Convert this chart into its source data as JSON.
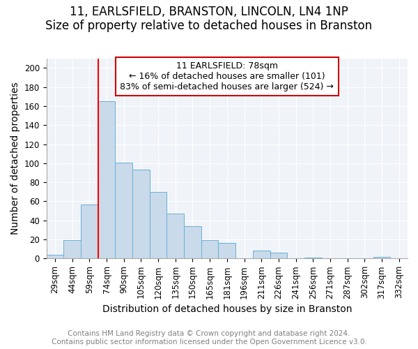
{
  "title": "11, EARLSFIELD, BRANSTON, LINCOLN, LN4 1NP",
  "subtitle": "Size of property relative to detached houses in Branston",
  "xlabel": "Distribution of detached houses by size in Branston",
  "ylabel": "Number of detached properties",
  "bin_labels": [
    "29sqm",
    "44sqm",
    "59sqm",
    "74sqm",
    "90sqm",
    "105sqm",
    "120sqm",
    "135sqm",
    "150sqm",
    "165sqm",
    "181sqm",
    "196sqm",
    "211sqm",
    "226sqm",
    "241sqm",
    "256sqm",
    "271sqm",
    "287sqm",
    "302sqm",
    "317sqm",
    "332sqm"
  ],
  "bar_values": [
    4,
    19,
    57,
    165,
    101,
    93,
    70,
    47,
    34,
    19,
    16,
    0,
    8,
    6,
    0,
    1,
    0,
    0,
    0,
    2,
    0
  ],
  "bar_color": "#c9daea",
  "bar_edge_color": "#6aafd6",
  "red_line_bin_index": 3,
  "annotation_title": "11 EARLSFIELD: 78sqm",
  "annotation_line1": "← 16% of detached houses are smaller (101)",
  "annotation_line2": "83% of semi-detached houses are larger (524) →",
  "annotation_box_edge": "#cc0000",
  "ylim": [
    0,
    210
  ],
  "yticks": [
    0,
    20,
    40,
    60,
    80,
    100,
    120,
    140,
    160,
    180,
    200
  ],
  "footnote1": "Contains HM Land Registry data © Crown copyright and database right 2024.",
  "footnote2": "Contains public sector information licensed under the Open Government Licence v3.0.",
  "title_fontsize": 12,
  "subtitle_fontsize": 10,
  "axis_label_fontsize": 10,
  "tick_fontsize": 8.5,
  "annotation_title_fontsize": 9.5,
  "annotation_body_fontsize": 9,
  "footnote_fontsize": 7.5,
  "background_color": "#f0f4f8"
}
